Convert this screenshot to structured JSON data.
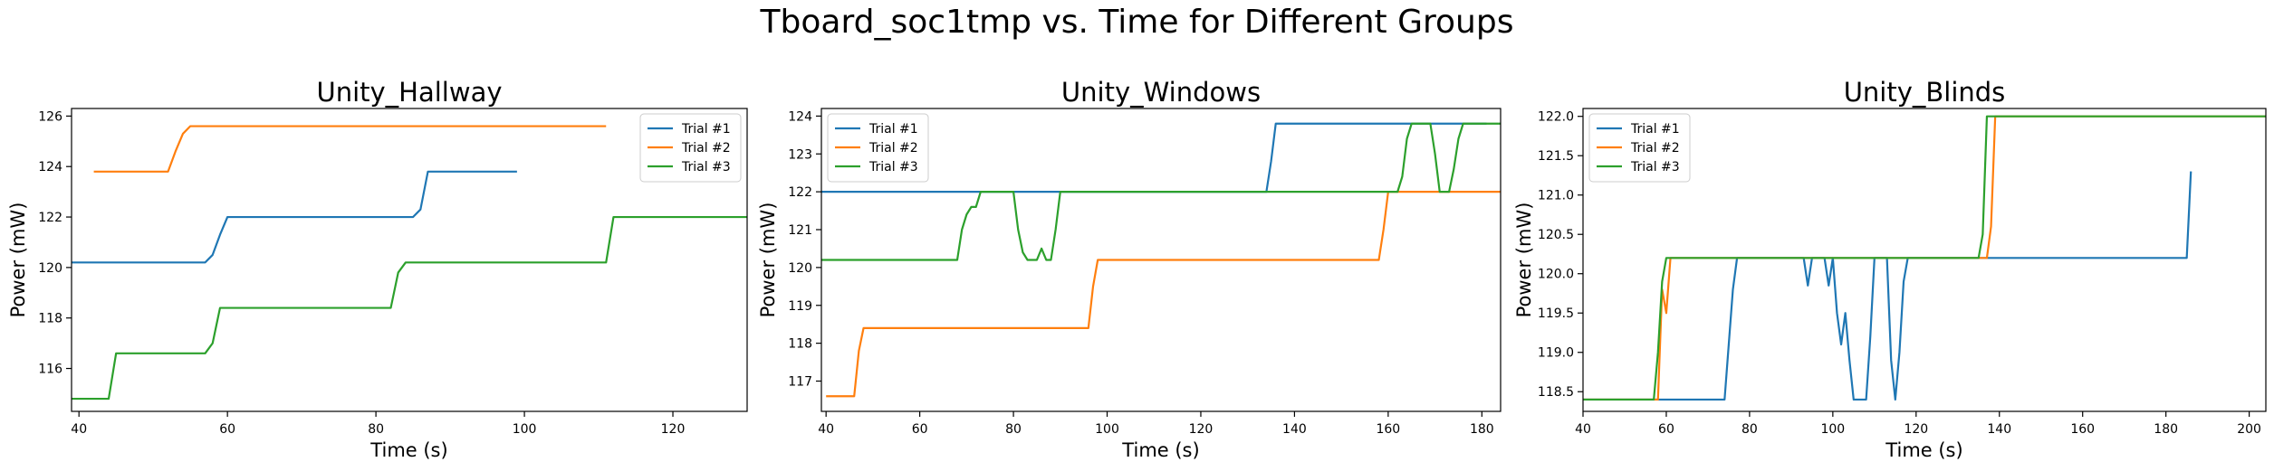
{
  "suptitle": "Tboard_soc1tmp vs. Time for Different Groups",
  "colors": {
    "trial1": "#1f77b4",
    "trial2": "#ff7f0e",
    "trial3": "#2ca02c"
  },
  "chart_data": [
    {
      "type": "line",
      "title": "Unity_Hallway",
      "xlabel": "Time (s)",
      "ylabel": "Power (mW)",
      "xlim": [
        39,
        130
      ],
      "ylim": [
        114.3,
        126.3
      ],
      "xticks": [
        40,
        60,
        80,
        100,
        120
      ],
      "xticklabels": [
        "40",
        "60",
        "80",
        "100",
        "120"
      ],
      "yticks": [
        116,
        118,
        120,
        122,
        124,
        126
      ],
      "yticklabels": [
        "116",
        "118",
        "120",
        "122",
        "124",
        "126"
      ],
      "legend_position": "top-right",
      "series": [
        {
          "name": "Trial #1",
          "color": "#1f77b4",
          "points": [
            [
              39,
              120.2
            ],
            [
              57,
              120.2
            ],
            [
              58,
              120.5
            ],
            [
              59,
              121.3
            ],
            [
              60,
              122.0
            ],
            [
              85,
              122.0
            ],
            [
              86,
              122.3
            ],
            [
              87,
              123.8
            ],
            [
              99,
              123.8
            ]
          ]
        },
        {
          "name": "Trial #2",
          "color": "#ff7f0e",
          "points": [
            [
              42,
              123.8
            ],
            [
              52,
              123.8
            ],
            [
              53,
              124.6
            ],
            [
              54,
              125.3
            ],
            [
              55,
              125.6
            ],
            [
              111,
              125.6
            ]
          ]
        },
        {
          "name": "Trial #3",
          "color": "#2ca02c",
          "points": [
            [
              39,
              114.8
            ],
            [
              44,
              114.8
            ],
            [
              45,
              116.6
            ],
            [
              57,
              116.6
            ],
            [
              58,
              117.0
            ],
            [
              59,
              118.4
            ],
            [
              82,
              118.4
            ],
            [
              83,
              119.8
            ],
            [
              84,
              120.2
            ],
            [
              111,
              120.2
            ],
            [
              112,
              122.0
            ],
            [
              130,
              122.0
            ]
          ]
        }
      ]
    },
    {
      "type": "line",
      "title": "Unity_Windows",
      "xlabel": "Time (s)",
      "ylabel": "Power (mW)",
      "xlim": [
        39,
        184
      ],
      "ylim": [
        116.2,
        124.2
      ],
      "xticks": [
        40,
        60,
        80,
        100,
        120,
        140,
        160,
        180
      ],
      "xticklabels": [
        "40",
        "60",
        "80",
        "100",
        "120",
        "140",
        "160",
        "180"
      ],
      "yticks": [
        117,
        118,
        119,
        120,
        121,
        122,
        123,
        124
      ],
      "yticklabels": [
        "117",
        "118",
        "119",
        "120",
        "121",
        "122",
        "123",
        "124"
      ],
      "legend_position": "top-left",
      "series": [
        {
          "name": "Trial #1",
          "color": "#1f77b4",
          "points": [
            [
              39,
              122.0
            ],
            [
              134,
              122.0
            ],
            [
              135,
              122.8
            ],
            [
              136,
              123.8
            ],
            [
              181,
              123.8
            ]
          ]
        },
        {
          "name": "Trial #2",
          "color": "#ff7f0e",
          "points": [
            [
              40,
              116.6
            ],
            [
              46,
              116.6
            ],
            [
              47,
              117.8
            ],
            [
              48,
              118.4
            ],
            [
              96,
              118.4
            ],
            [
              97,
              119.5
            ],
            [
              98,
              120.2
            ],
            [
              158,
              120.2
            ],
            [
              159,
              121.0
            ],
            [
              160,
              122.0
            ],
            [
              184,
              122.0
            ]
          ]
        },
        {
          "name": "Trial #3",
          "color": "#2ca02c",
          "points": [
            [
              39,
              120.2
            ],
            [
              68,
              120.2
            ],
            [
              69,
              121.0
            ],
            [
              70,
              121.4
            ],
            [
              71,
              121.6
            ],
            [
              72,
              121.6
            ],
            [
              73,
              122.0
            ],
            [
              80,
              122.0
            ],
            [
              81,
              121.0
            ],
            [
              82,
              120.4
            ],
            [
              83,
              120.2
            ],
            [
              85,
              120.2
            ],
            [
              86,
              120.5
            ],
            [
              87,
              120.2
            ],
            [
              88,
              120.2
            ],
            [
              89,
              121.0
            ],
            [
              90,
              122.0
            ],
            [
              162,
              122.0
            ],
            [
              163,
              122.4
            ],
            [
              164,
              123.4
            ],
            [
              165,
              123.8
            ],
            [
              169,
              123.8
            ],
            [
              170,
              123.0
            ],
            [
              171,
              122.0
            ],
            [
              173,
              122.0
            ],
            [
              174,
              122.6
            ],
            [
              175,
              123.4
            ],
            [
              176,
              123.8
            ],
            [
              184,
              123.8
            ]
          ]
        }
      ]
    },
    {
      "type": "line",
      "title": "Unity_Blinds",
      "xlabel": "Time (s)",
      "ylabel": "Power (mW)",
      "xlim": [
        40,
        204
      ],
      "ylim": [
        118.25,
        122.1
      ],
      "xticks": [
        40,
        60,
        80,
        100,
        120,
        140,
        160,
        180,
        200
      ],
      "xticklabels": [
        "40",
        "60",
        "80",
        "100",
        "120",
        "140",
        "160",
        "180",
        "200"
      ],
      "yticks": [
        118.5,
        119.0,
        119.5,
        120.0,
        120.5,
        121.0,
        121.5,
        122.0
      ],
      "yticklabels": [
        "118.5",
        "119.0",
        "119.5",
        "120.0",
        "120.5",
        "121.0",
        "121.5",
        "122.0"
      ],
      "legend_position": "top-left",
      "series": [
        {
          "name": "Trial #1",
          "color": "#1f77b4",
          "points": [
            [
              40,
              118.4
            ],
            [
              74,
              118.4
            ],
            [
              76,
              119.8
            ],
            [
              77,
              120.2
            ],
            [
              93,
              120.2
            ],
            [
              94,
              119.85
            ],
            [
              95,
              120.2
            ],
            [
              97,
              120.2
            ],
            [
              98,
              120.2
            ],
            [
              99,
              119.85
            ],
            [
              100,
              120.2
            ],
            [
              101,
              119.5
            ],
            [
              102,
              119.1
            ],
            [
              103,
              119.5
            ],
            [
              104,
              118.9
            ],
            [
              105,
              118.4
            ],
            [
              108,
              118.4
            ],
            [
              109,
              119.2
            ],
            [
              110,
              120.2
            ],
            [
              113,
              120.2
            ],
            [
              114,
              118.9
            ],
            [
              115,
              118.4
            ],
            [
              116,
              119.0
            ],
            [
              117,
              119.9
            ],
            [
              118,
              120.2
            ],
            [
              185,
              120.2
            ],
            [
              186,
              121.3
            ]
          ]
        },
        {
          "name": "Trial #2",
          "color": "#ff7f0e",
          "points": [
            [
              40,
              118.4
            ],
            [
              58,
              118.4
            ],
            [
              59,
              119.8
            ],
            [
              60,
              119.5
            ],
            [
              61,
              120.2
            ],
            [
              137,
              120.2
            ],
            [
              138,
              120.6
            ],
            [
              139,
              122.0
            ],
            [
              204,
              122.0
            ]
          ]
        },
        {
          "name": "Trial #3",
          "color": "#2ca02c",
          "points": [
            [
              40,
              118.4
            ],
            [
              57,
              118.4
            ],
            [
              58,
              119.0
            ],
            [
              59,
              119.9
            ],
            [
              60,
              120.2
            ],
            [
              135,
              120.2
            ],
            [
              136,
              120.5
            ],
            [
              137,
              122.0
            ],
            [
              204,
              122.0
            ]
          ]
        }
      ]
    }
  ]
}
